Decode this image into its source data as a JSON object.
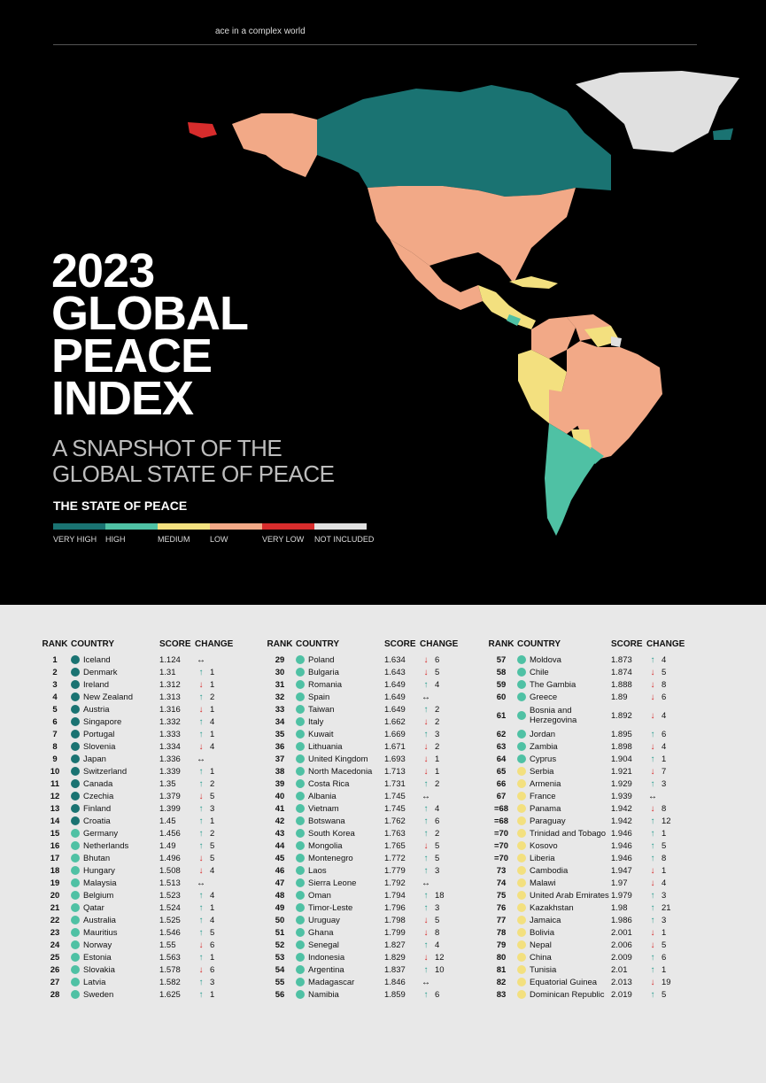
{
  "header": {
    "tagline": "ace in a complex world"
  },
  "hero": {
    "title_lines": [
      "2023",
      "GLOBAL",
      "PEACE",
      "INDEX"
    ],
    "subtitle_lines": [
      "A SNAPSHOT OF THE",
      "GLOBAL STATE OF PEACE"
    ]
  },
  "legend": {
    "title": "THE STATE OF PEACE",
    "items": [
      {
        "label": "VERY HIGH",
        "color": "#1a7372"
      },
      {
        "label": "HIGH",
        "color": "#4fc1a4"
      },
      {
        "label": "MEDIUM",
        "color": "#f3e07f"
      },
      {
        "label": "LOW",
        "color": "#f2a987"
      },
      {
        "label": "VERY LOW",
        "color": "#d72c2c"
      },
      {
        "label": "NOT INCLUDED",
        "color": "#e0e0e0"
      }
    ]
  },
  "table": {
    "headers": {
      "rank": "RANK",
      "country": "COUNTRY",
      "score": "SCORE",
      "change": "CHANGE"
    },
    "columns": [
      [
        {
          "rank": "1",
          "country": "Iceland",
          "score": "1.124",
          "dir": "same",
          "change": "",
          "level": "very_high"
        },
        {
          "rank": "2",
          "country": "Denmark",
          "score": "1.31",
          "dir": "up",
          "change": "1",
          "level": "very_high"
        },
        {
          "rank": "3",
          "country": "Ireland",
          "score": "1.312",
          "dir": "down",
          "change": "1",
          "level": "very_high"
        },
        {
          "rank": "4",
          "country": "New Zealand",
          "score": "1.313",
          "dir": "up",
          "change": "2",
          "level": "very_high"
        },
        {
          "rank": "5",
          "country": "Austria",
          "score": "1.316",
          "dir": "down",
          "change": "1",
          "level": "very_high"
        },
        {
          "rank": "6",
          "country": "Singapore",
          "score": "1.332",
          "dir": "up",
          "change": "4",
          "level": "very_high"
        },
        {
          "rank": "7",
          "country": "Portugal",
          "score": "1.333",
          "dir": "up",
          "change": "1",
          "level": "very_high"
        },
        {
          "rank": "8",
          "country": "Slovenia",
          "score": "1.334",
          "dir": "down",
          "change": "4",
          "level": "very_high"
        },
        {
          "rank": "9",
          "country": "Japan",
          "score": "1.336",
          "dir": "same",
          "change": "",
          "level": "very_high"
        },
        {
          "rank": "10",
          "country": "Switzerland",
          "score": "1.339",
          "dir": "up",
          "change": "1",
          "level": "very_high"
        },
        {
          "rank": "11",
          "country": "Canada",
          "score": "1.35",
          "dir": "up",
          "change": "2",
          "level": "very_high"
        },
        {
          "rank": "12",
          "country": "Czechia",
          "score": "1.379",
          "dir": "down",
          "change": "5",
          "level": "very_high"
        },
        {
          "rank": "13",
          "country": "Finland",
          "score": "1.399",
          "dir": "up",
          "change": "3",
          "level": "very_high"
        },
        {
          "rank": "14",
          "country": "Croatia",
          "score": "1.45",
          "dir": "up",
          "change": "1",
          "level": "very_high"
        },
        {
          "rank": "15",
          "country": "Germany",
          "score": "1.456",
          "dir": "up",
          "change": "2",
          "level": "high"
        },
        {
          "rank": "16",
          "country": "Netherlands",
          "score": "1.49",
          "dir": "up",
          "change": "5",
          "level": "high"
        },
        {
          "rank": "17",
          "country": "Bhutan",
          "score": "1.496",
          "dir": "down",
          "change": "5",
          "level": "high"
        },
        {
          "rank": "18",
          "country": "Hungary",
          "score": "1.508",
          "dir": "down",
          "change": "4",
          "level": "high"
        },
        {
          "rank": "19",
          "country": "Malaysia",
          "score": "1.513",
          "dir": "same",
          "change": "",
          "level": "high"
        },
        {
          "rank": "20",
          "country": "Belgium",
          "score": "1.523",
          "dir": "up",
          "change": "4",
          "level": "high"
        },
        {
          "rank": "21",
          "country": "Qatar",
          "score": "1.524",
          "dir": "up",
          "change": "1",
          "level": "high"
        },
        {
          "rank": "22",
          "country": "Australia",
          "score": "1.525",
          "dir": "up",
          "change": "4",
          "level": "high"
        },
        {
          "rank": "23",
          "country": "Mauritius",
          "score": "1.546",
          "dir": "up",
          "change": "5",
          "level": "high"
        },
        {
          "rank": "24",
          "country": "Norway",
          "score": "1.55",
          "dir": "down",
          "change": "6",
          "level": "high"
        },
        {
          "rank": "25",
          "country": "Estonia",
          "score": "1.563",
          "dir": "up",
          "change": "1",
          "level": "high"
        },
        {
          "rank": "26",
          "country": "Slovakia",
          "score": "1.578",
          "dir": "down",
          "change": "6",
          "level": "high"
        },
        {
          "rank": "27",
          "country": "Latvia",
          "score": "1.582",
          "dir": "up",
          "change": "3",
          "level": "high"
        },
        {
          "rank": "28",
          "country": "Sweden",
          "score": "1.625",
          "dir": "up",
          "change": "1",
          "level": "high"
        }
      ],
      [
        {
          "rank": "29",
          "country": "Poland",
          "score": "1.634",
          "dir": "down",
          "change": "6",
          "level": "high"
        },
        {
          "rank": "30",
          "country": "Bulgaria",
          "score": "1.643",
          "dir": "down",
          "change": "5",
          "level": "high"
        },
        {
          "rank": "31",
          "country": "Romania",
          "score": "1.649",
          "dir": "up",
          "change": "4",
          "level": "high"
        },
        {
          "rank": "32",
          "country": "Spain",
          "score": "1.649",
          "dir": "same",
          "change": "",
          "level": "high"
        },
        {
          "rank": "33",
          "country": "Taiwan",
          "score": "1.649",
          "dir": "up",
          "change": "2",
          "level": "high"
        },
        {
          "rank": "34",
          "country": "Italy",
          "score": "1.662",
          "dir": "down",
          "change": "2",
          "level": "high"
        },
        {
          "rank": "35",
          "country": "Kuwait",
          "score": "1.669",
          "dir": "up",
          "change": "3",
          "level": "high"
        },
        {
          "rank": "36",
          "country": "Lithuania",
          "score": "1.671",
          "dir": "down",
          "change": "2",
          "level": "high"
        },
        {
          "rank": "37",
          "country": "United Kingdom",
          "score": "1.693",
          "dir": "down",
          "change": "1",
          "level": "high"
        },
        {
          "rank": "38",
          "country": "North Macedonia",
          "score": "1.713",
          "dir": "down",
          "change": "1",
          "level": "high"
        },
        {
          "rank": "39",
          "country": "Costa Rica",
          "score": "1.731",
          "dir": "up",
          "change": "2",
          "level": "high"
        },
        {
          "rank": "40",
          "country": "Albania",
          "score": "1.745",
          "dir": "same",
          "change": "",
          "level": "high"
        },
        {
          "rank": "41",
          "country": "Vietnam",
          "score": "1.745",
          "dir": "up",
          "change": "4",
          "level": "high"
        },
        {
          "rank": "42",
          "country": "Botswana",
          "score": "1.762",
          "dir": "up",
          "change": "6",
          "level": "high"
        },
        {
          "rank": "43",
          "country": "South Korea",
          "score": "1.763",
          "dir": "up",
          "change": "2",
          "level": "high"
        },
        {
          "rank": "44",
          "country": "Mongolia",
          "score": "1.765",
          "dir": "down",
          "change": "5",
          "level": "high"
        },
        {
          "rank": "45",
          "country": "Montenegro",
          "score": "1.772",
          "dir": "up",
          "change": "5",
          "level": "high"
        },
        {
          "rank": "46",
          "country": "Laos",
          "score": "1.779",
          "dir": "up",
          "change": "3",
          "level": "high"
        },
        {
          "rank": "47",
          "country": "Sierra Leone",
          "score": "1.792",
          "dir": "same",
          "change": "",
          "level": "high"
        },
        {
          "rank": "48",
          "country": "Oman",
          "score": "1.794",
          "dir": "up",
          "change": "18",
          "level": "high"
        },
        {
          "rank": "49",
          "country": "Timor-Leste",
          "score": "1.796",
          "dir": "up",
          "change": "3",
          "level": "high"
        },
        {
          "rank": "50",
          "country": "Uruguay",
          "score": "1.798",
          "dir": "down",
          "change": "5",
          "level": "high"
        },
        {
          "rank": "51",
          "country": "Ghana",
          "score": "1.799",
          "dir": "down",
          "change": "8",
          "level": "high"
        },
        {
          "rank": "52",
          "country": "Senegal",
          "score": "1.827",
          "dir": "up",
          "change": "4",
          "level": "high"
        },
        {
          "rank": "53",
          "country": "Indonesia",
          "score": "1.829",
          "dir": "down",
          "change": "12",
          "level": "high"
        },
        {
          "rank": "54",
          "country": "Argentina",
          "score": "1.837",
          "dir": "up",
          "change": "10",
          "level": "high"
        },
        {
          "rank": "55",
          "country": "Madagascar",
          "score": "1.846",
          "dir": "same",
          "change": "",
          "level": "high"
        },
        {
          "rank": "56",
          "country": "Namibia",
          "score": "1.859",
          "dir": "up",
          "change": "6",
          "level": "high"
        }
      ],
      [
        {
          "rank": "57",
          "country": "Moldova",
          "score": "1.873",
          "dir": "up",
          "change": "4",
          "level": "high"
        },
        {
          "rank": "58",
          "country": "Chile",
          "score": "1.874",
          "dir": "down",
          "change": "5",
          "level": "high"
        },
        {
          "rank": "59",
          "country": "The Gambia",
          "score": "1.888",
          "dir": "down",
          "change": "8",
          "level": "high"
        },
        {
          "rank": "60",
          "country": "Greece",
          "score": "1.89",
          "dir": "down",
          "change": "6",
          "level": "high"
        },
        {
          "rank": "61",
          "country": "Bosnia and Herzegovina",
          "score": "1.892",
          "dir": "down",
          "change": "4",
          "level": "high",
          "tall": true
        },
        {
          "rank": "62",
          "country": "Jordan",
          "score": "1.895",
          "dir": "up",
          "change": "6",
          "level": "high"
        },
        {
          "rank": "63",
          "country": "Zambia",
          "score": "1.898",
          "dir": "down",
          "change": "4",
          "level": "high"
        },
        {
          "rank": "64",
          "country": "Cyprus",
          "score": "1.904",
          "dir": "up",
          "change": "1",
          "level": "high"
        },
        {
          "rank": "65",
          "country": "Serbia",
          "score": "1.921",
          "dir": "down",
          "change": "7",
          "level": "medium"
        },
        {
          "rank": "66",
          "country": "Armenia",
          "score": "1.929",
          "dir": "up",
          "change": "3",
          "level": "medium"
        },
        {
          "rank": "67",
          "country": "France",
          "score": "1.939",
          "dir": "same",
          "change": "",
          "level": "medium"
        },
        {
          "rank": "=68",
          "country": "Panama",
          "score": "1.942",
          "dir": "down",
          "change": "8",
          "level": "medium"
        },
        {
          "rank": "=68",
          "country": "Paraguay",
          "score": "1.942",
          "dir": "up",
          "change": "12",
          "level": "medium"
        },
        {
          "rank": "=70",
          "country": "Trinidad and Tobago",
          "score": "1.946",
          "dir": "up",
          "change": "1",
          "level": "medium"
        },
        {
          "rank": "=70",
          "country": "Kosovo",
          "score": "1.946",
          "dir": "up",
          "change": "5",
          "level": "medium"
        },
        {
          "rank": "=70",
          "country": "Liberia",
          "score": "1.946",
          "dir": "up",
          "change": "8",
          "level": "medium"
        },
        {
          "rank": "73",
          "country": "Cambodia",
          "score": "1.947",
          "dir": "down",
          "change": "1",
          "level": "medium"
        },
        {
          "rank": "74",
          "country": "Malawi",
          "score": "1.97",
          "dir": "down",
          "change": "4",
          "level": "medium"
        },
        {
          "rank": "75",
          "country": "United Arab Emirates",
          "score": "1.979",
          "dir": "up",
          "change": "3",
          "level": "medium"
        },
        {
          "rank": "76",
          "country": "Kazakhstan",
          "score": "1.98",
          "dir": "up",
          "change": "21",
          "level": "medium"
        },
        {
          "rank": "77",
          "country": "Jamaica",
          "score": "1.986",
          "dir": "up",
          "change": "3",
          "level": "medium"
        },
        {
          "rank": "78",
          "country": "Bolivia",
          "score": "2.001",
          "dir": "down",
          "change": "1",
          "level": "medium"
        },
        {
          "rank": "79",
          "country": "Nepal",
          "score": "2.006",
          "dir": "down",
          "change": "5",
          "level": "medium"
        },
        {
          "rank": "80",
          "country": "China",
          "score": "2.009",
          "dir": "up",
          "change": "6",
          "level": "medium"
        },
        {
          "rank": "81",
          "country": "Tunisia",
          "score": "2.01",
          "dir": "up",
          "change": "1",
          "level": "medium"
        },
        {
          "rank": "82",
          "country": "Equatorial Guinea",
          "score": "2.013",
          "dir": "down",
          "change": "19",
          "level": "medium"
        },
        {
          "rank": "83",
          "country": "Dominican Republic",
          "score": "2.019",
          "dir": "up",
          "change": "5",
          "level": "medium"
        }
      ]
    ]
  },
  "level_colors": {
    "very_high": "#1a7372",
    "high": "#4fc1a4",
    "medium": "#f3e07f"
  },
  "arrow_glyphs": {
    "up": "↑",
    "down": "↓",
    "same": "↔"
  }
}
